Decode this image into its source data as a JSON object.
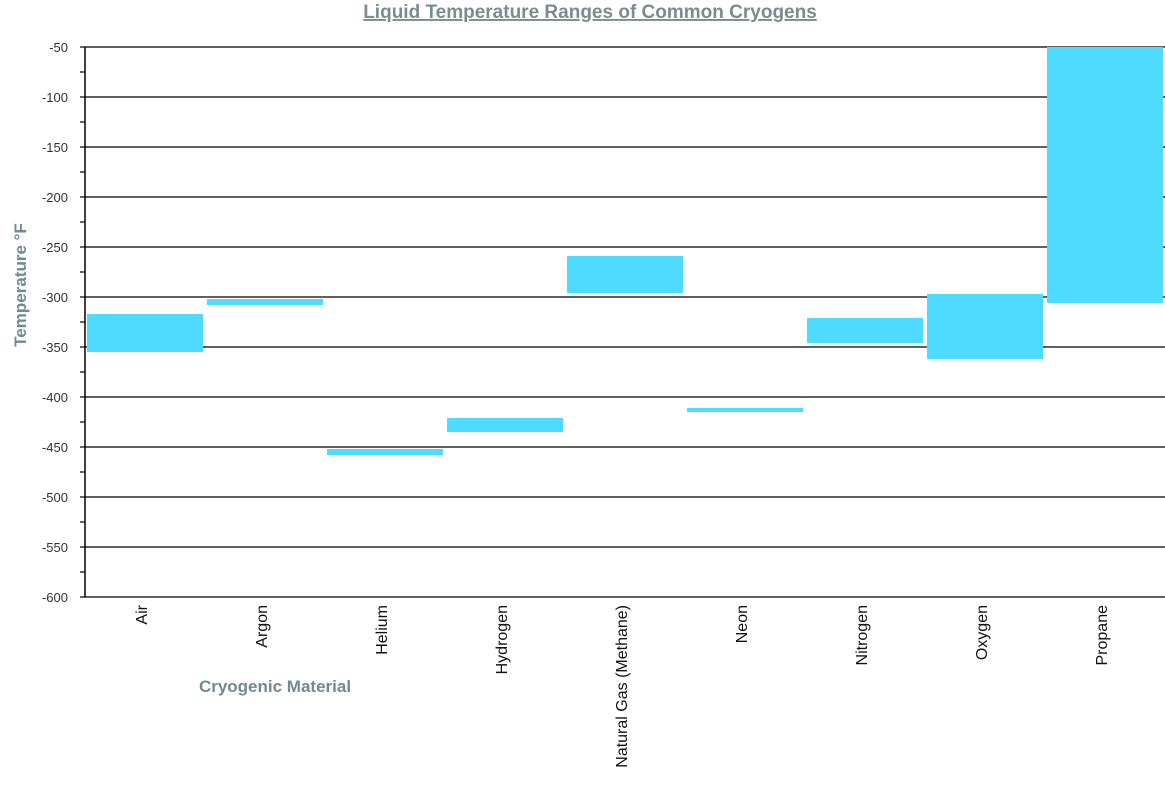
{
  "chart_data": {
    "type": "bar",
    "title": "Liquid Temperature Ranges of Common Cryogens",
    "xlabel": "Cryogenic Material",
    "ylabel": "Temperature °F",
    "ylim": [
      -600,
      -50
    ],
    "yticks": [
      -50,
      -100,
      -150,
      -200,
      -250,
      -300,
      -350,
      -400,
      -450,
      -500,
      -550,
      -600
    ],
    "grid": true,
    "bar_color": "#4fdbff",
    "categories": [
      "Air",
      "Argon",
      "Helium",
      "Hydrogen",
      "Natural Gas (Methane)",
      "Neon",
      "Nitrogen",
      "Oxygen",
      "Propane"
    ],
    "ranges": [
      {
        "low": -355,
        "high": -317
      },
      {
        "low": -308,
        "high": -302
      },
      {
        "low": -458,
        "high": -452
      },
      {
        "low": -435,
        "high": -421
      },
      {
        "low": -296,
        "high": -259
      },
      {
        "low": -415,
        "high": -411
      },
      {
        "low": -346,
        "high": -321
      },
      {
        "low": -362,
        "high": -297
      },
      {
        "low": -306,
        "high": -50
      }
    ]
  }
}
